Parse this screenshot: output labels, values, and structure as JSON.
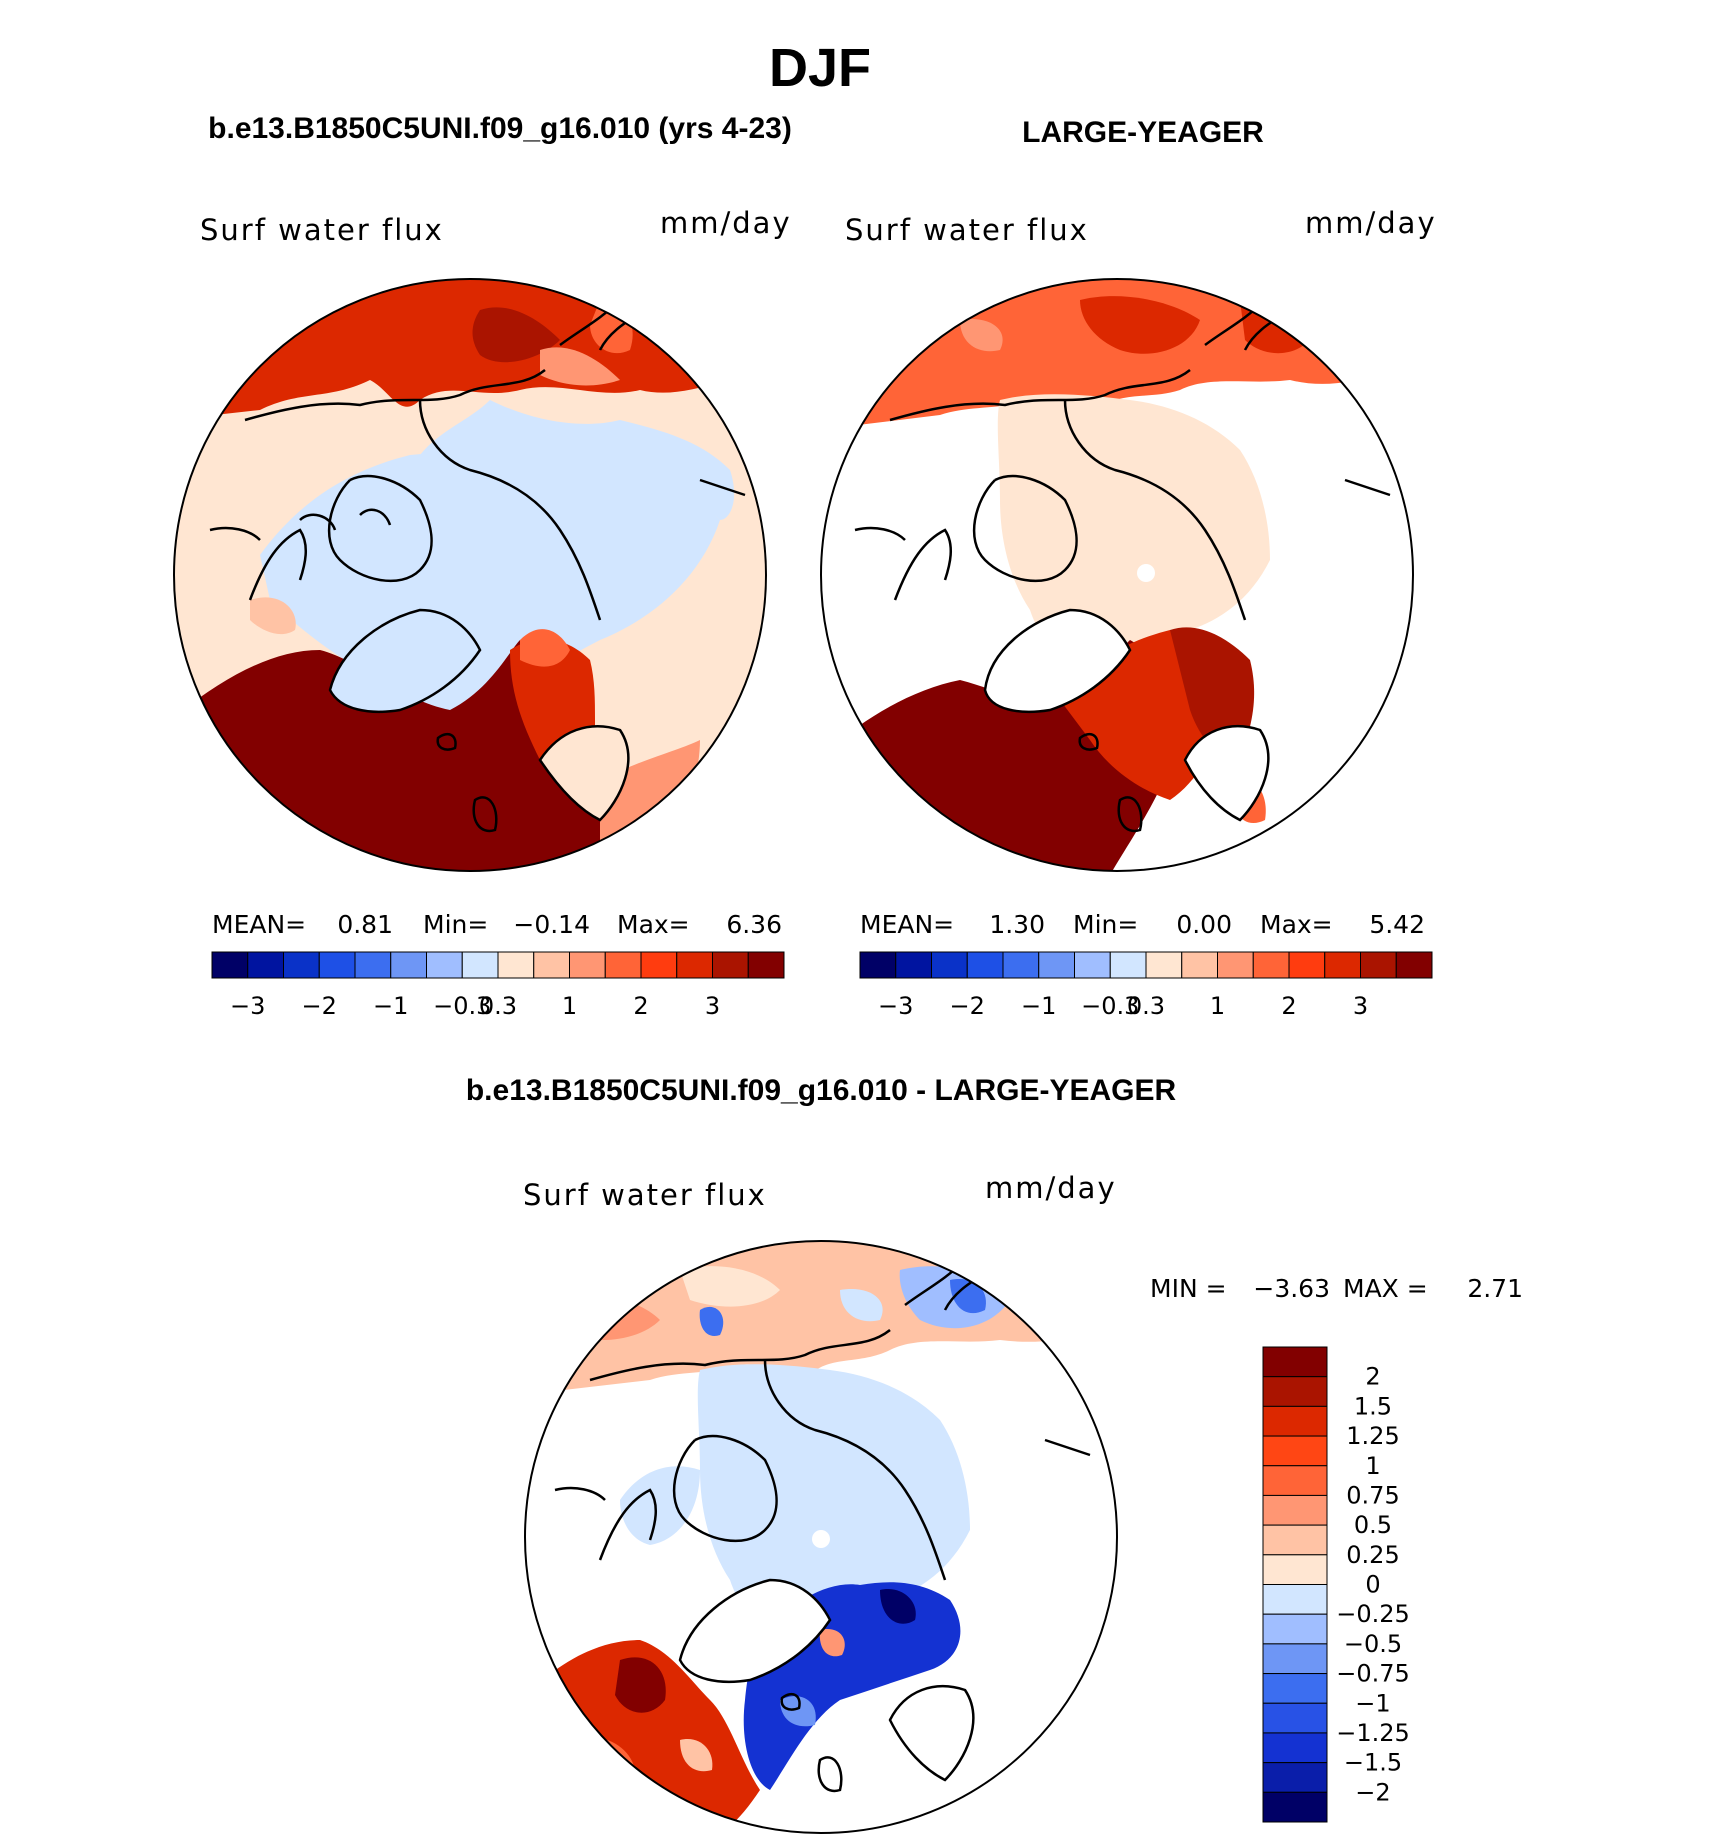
{
  "figure": {
    "season": "DJF",
    "left_title": "b.e13.B1850C5UNI.f09_g16.010 (yrs 4-23)",
    "right_title": "LARGE-YEAGER",
    "diff_title": "b.e13.B1850C5UNI.f09_g16.010 - LARGE-YEAGER"
  },
  "colors": {
    "continuous_scale": [
      "#000066",
      "#0014a0",
      "#0a32c8",
      "#1e50e6",
      "#3c6ef0",
      "#6e96f5",
      "#a0beff",
      "#d2e6ff",
      "#ffe6d2",
      "#ffc3a5",
      "#ff9673",
      "#ff6437",
      "#ff3c0f",
      "#dc2800",
      "#aa1400",
      "#820000"
    ],
    "diff_scale": [
      "#000066",
      "#0a1eaa",
      "#1432d2",
      "#2852e6",
      "#3c6ef0",
      "#6e96f5",
      "#a0beff",
      "#d2e6ff",
      "#ffe6d2",
      "#ffc3a5",
      "#ff9673",
      "#ff6437",
      "#ff4614",
      "#dc2800",
      "#aa1400",
      "#820000"
    ],
    "land_white": "#ffffff",
    "coast": "#000000"
  },
  "chart_data": [
    {
      "type": "heatmap",
      "panel": "left",
      "title": "b.e13.B1850C5UNI.f09_g16.010 (yrs 4-23)",
      "field_label": "Surf water flux",
      "units": "mm/day",
      "stats": {
        "mean_label": "MEAN=",
        "mean": "0.81",
        "min_label": "Min=",
        "min": "−0.14",
        "max_label": "Max=",
        "max": "6.36"
      },
      "levels": [
        -3,
        -2.5,
        -2,
        -1.5,
        -1,
        -0.5,
        -0.3,
        0,
        0.3,
        0.5,
        1,
        1.5,
        2,
        2.5,
        3
      ],
      "tick_labels": [
        "−3",
        "−2",
        "−1",
        "−0.3",
        "0.3",
        "1",
        "2",
        "3"
      ],
      "colorbar_orientation": "horizontal"
    },
    {
      "type": "heatmap",
      "panel": "right",
      "title": "LARGE-YEAGER",
      "field_label": "Surf water flux",
      "units": "mm/day",
      "stats": {
        "mean_label": "MEAN=",
        "mean": "1.30",
        "min_label": "Min=",
        "min": "0.00",
        "max_label": "Max=",
        "max": "5.42"
      },
      "levels": [
        -3,
        -2.5,
        -2,
        -1.5,
        -1,
        -0.5,
        -0.3,
        0,
        0.3,
        0.5,
        1,
        1.5,
        2,
        2.5,
        3
      ],
      "tick_labels": [
        "−3",
        "−2",
        "−1",
        "−0.3",
        "0.3",
        "1",
        "2",
        "3"
      ],
      "colorbar_orientation": "horizontal"
    },
    {
      "type": "heatmap",
      "panel": "difference",
      "title": "b.e13.B1850C5UNI.f09_g16.010 - LARGE-YEAGER",
      "field_label": "Surf water flux",
      "units": "mm/day",
      "stats": {
        "min_label": "MIN =",
        "min": "−3.63",
        "max_label": "MAX =",
        "max": "2.71"
      },
      "levels": [
        2,
        1.5,
        1.25,
        1,
        0.75,
        0.5,
        0.25,
        0,
        -0.25,
        -0.5,
        -0.75,
        -1,
        -1.25,
        -1.5,
        -2
      ],
      "tick_labels": [
        "2",
        "1.5",
        "1.25",
        "1",
        "0.75",
        "0.5",
        "0.25",
        "0",
        "−0.25",
        "−0.5",
        "−0.75",
        "−1",
        "−1.25",
        "−1.5",
        "−2"
      ],
      "colorbar_orientation": "vertical"
    }
  ]
}
